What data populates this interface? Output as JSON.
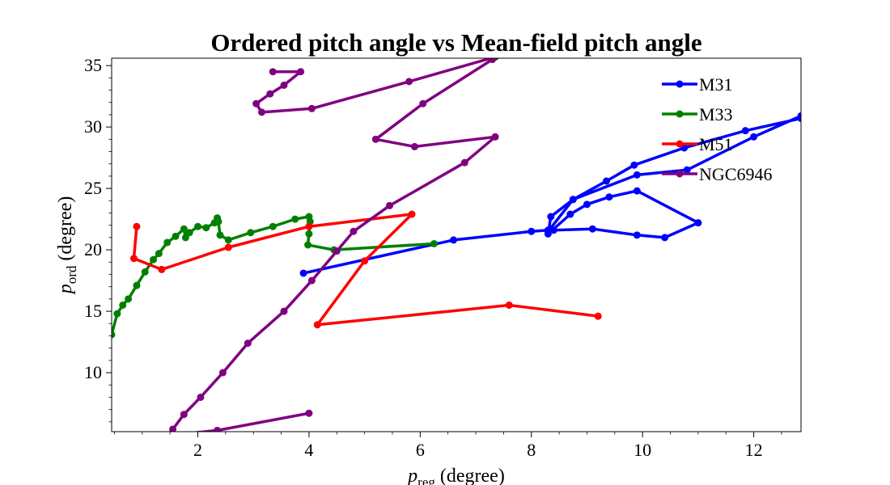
{
  "chart_data": {
    "type": "line",
    "title": "Ordered pitch angle vs Mean-field pitch angle",
    "xlabel": {
      "base": "p",
      "sub": "reg",
      "rest": " (degree)"
    },
    "ylabel": {
      "base": "p",
      "sub": "ord",
      "rest": " (degree)"
    },
    "xlim": [
      0.45,
      12.85
    ],
    "ylim": [
      5.2,
      35.6
    ],
    "xticks": [
      2,
      4,
      6,
      8,
      10,
      12
    ],
    "yticks": [
      10,
      15,
      20,
      25,
      30,
      35
    ],
    "legend_position": "upper-right",
    "series": [
      {
        "name": "M31",
        "color": "#0000ff",
        "x": [
          3.9,
          6.6,
          8.0,
          8.3,
          8.4,
          9.1,
          9.9,
          10.4,
          11.0,
          9.9,
          9.4,
          9.0,
          8.7,
          8.3,
          8.35,
          8.75,
          9.35,
          9.85,
          10.75,
          11.85,
          12.85,
          12.85,
          12.0,
          10.8,
          9.9,
          8.75,
          8.3
        ],
        "y": [
          18.1,
          20.8,
          21.5,
          21.6,
          21.6,
          21.7,
          21.2,
          21.0,
          22.2,
          24.8,
          24.3,
          23.7,
          22.9,
          21.3,
          22.7,
          24.1,
          25.6,
          26.9,
          28.3,
          29.7,
          30.7,
          30.9,
          29.2,
          26.5,
          26.1,
          24.1,
          21.5
        ]
      },
      {
        "name": "M33",
        "color": "#008000",
        "x": [
          0.45,
          0.55,
          0.65,
          0.75,
          0.9,
          1.05,
          1.2,
          1.3,
          1.45,
          1.6,
          1.75,
          1.78,
          1.85,
          2.0,
          2.15,
          2.3,
          2.35,
          2.37,
          2.4,
          2.55,
          2.95,
          3.35,
          3.75,
          4.0,
          4.02,
          4.0,
          3.98,
          4.45,
          6.25
        ],
        "y": [
          13.1,
          14.8,
          15.5,
          16.0,
          17.1,
          18.2,
          19.2,
          19.7,
          20.6,
          21.1,
          21.7,
          21.0,
          21.4,
          21.9,
          21.8,
          22.2,
          22.6,
          22.3,
          21.2,
          20.8,
          21.4,
          21.9,
          22.5,
          22.7,
          22.3,
          21.3,
          20.4,
          20.0,
          20.5
        ]
      },
      {
        "name": "M51",
        "color": "#ff0000",
        "x": [
          0.9,
          0.85,
          1.35,
          2.55,
          4.0,
          5.85,
          5.0,
          4.15,
          7.6,
          9.2
        ],
        "y": [
          21.9,
          19.3,
          18.4,
          20.2,
          21.9,
          22.9,
          19.1,
          13.9,
          15.5,
          14.6
        ]
      },
      {
        "name": "NGC6946",
        "color": "#800080",
        "x": [
          4.0,
          2.35,
          1.45,
          1.55,
          1.75,
          2.05,
          2.45,
          2.9,
          3.55,
          4.05,
          4.5,
          4.8,
          5.45,
          6.8,
          7.35,
          5.9,
          5.2,
          6.05,
          7.3,
          7.35,
          5.8,
          4.05,
          3.15,
          3.05,
          3.3,
          3.55,
          3.85,
          3.35
        ],
        "y": [
          6.7,
          5.3,
          4.9,
          5.4,
          6.6,
          8.0,
          10.0,
          12.4,
          15.0,
          17.5,
          19.9,
          21.5,
          23.6,
          27.1,
          29.2,
          28.4,
          29.0,
          31.9,
          35.5,
          35.7,
          33.7,
          31.5,
          31.2,
          31.9,
          32.7,
          33.4,
          34.5,
          34.5
        ]
      }
    ]
  }
}
